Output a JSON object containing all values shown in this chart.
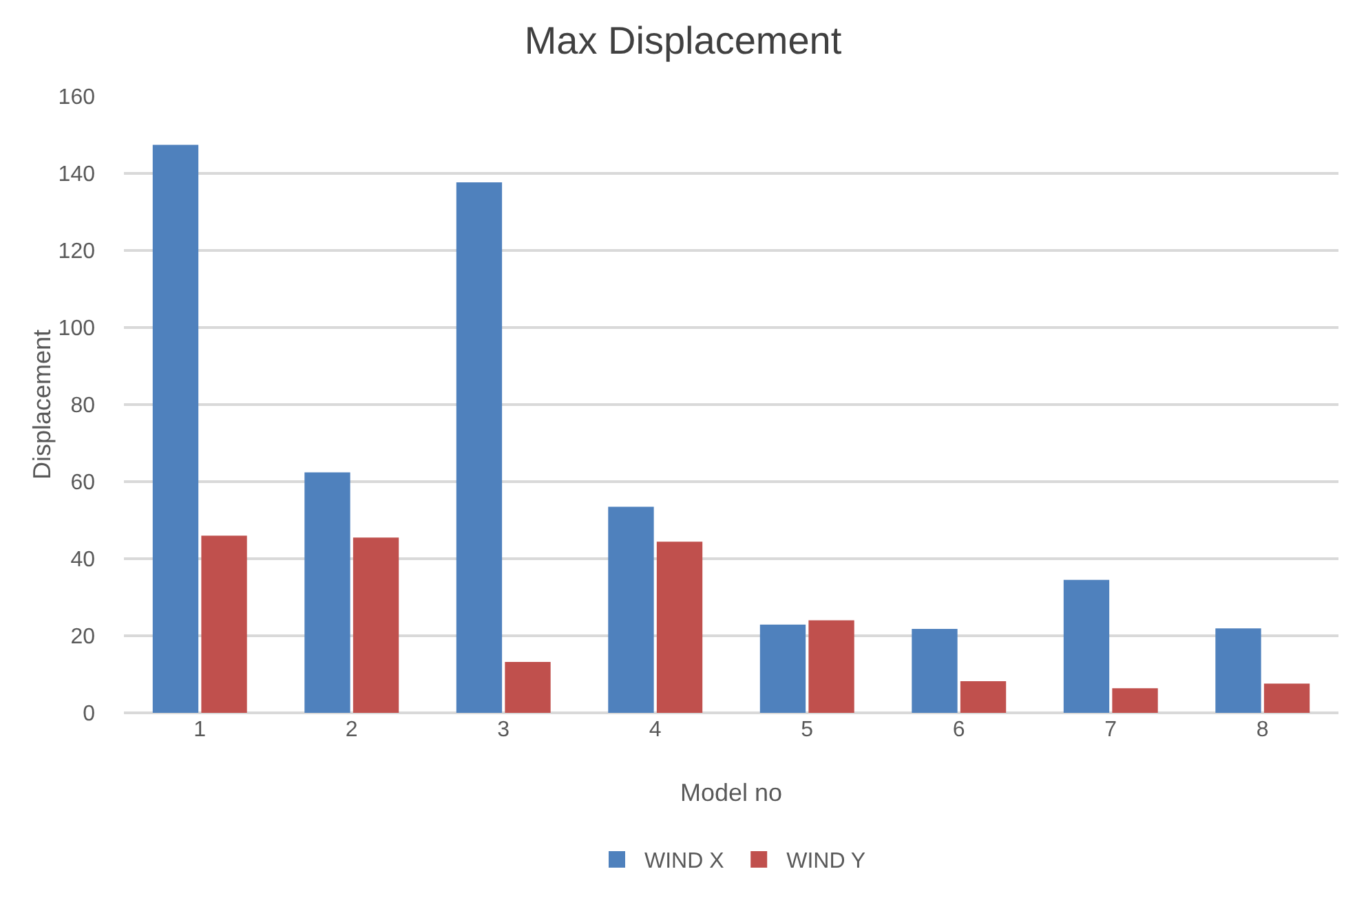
{
  "chart_data": {
    "type": "bar",
    "title": "Max Displacement",
    "xlabel": "Model no",
    "ylabel": "Displacement",
    "categories": [
      "1",
      "2",
      "3",
      "4",
      "5",
      "6",
      "7",
      "8"
    ],
    "series": [
      {
        "name": "WIND X",
        "color": "#4f81bd",
        "values": [
          147.4,
          62.4,
          137.7,
          53.5,
          22.9,
          21.8,
          34.5,
          21.9
        ]
      },
      {
        "name": "WIND Y",
        "color": "#c0504d",
        "values": [
          46.0,
          45.5,
          13.2,
          44.4,
          24.0,
          8.2,
          6.4,
          7.6
        ]
      }
    ],
    "ylim": [
      0,
      160
    ],
    "yticks": [
      0,
      20,
      40,
      60,
      80,
      100,
      120,
      140,
      160
    ],
    "grid": "y",
    "legend": "bottom"
  }
}
